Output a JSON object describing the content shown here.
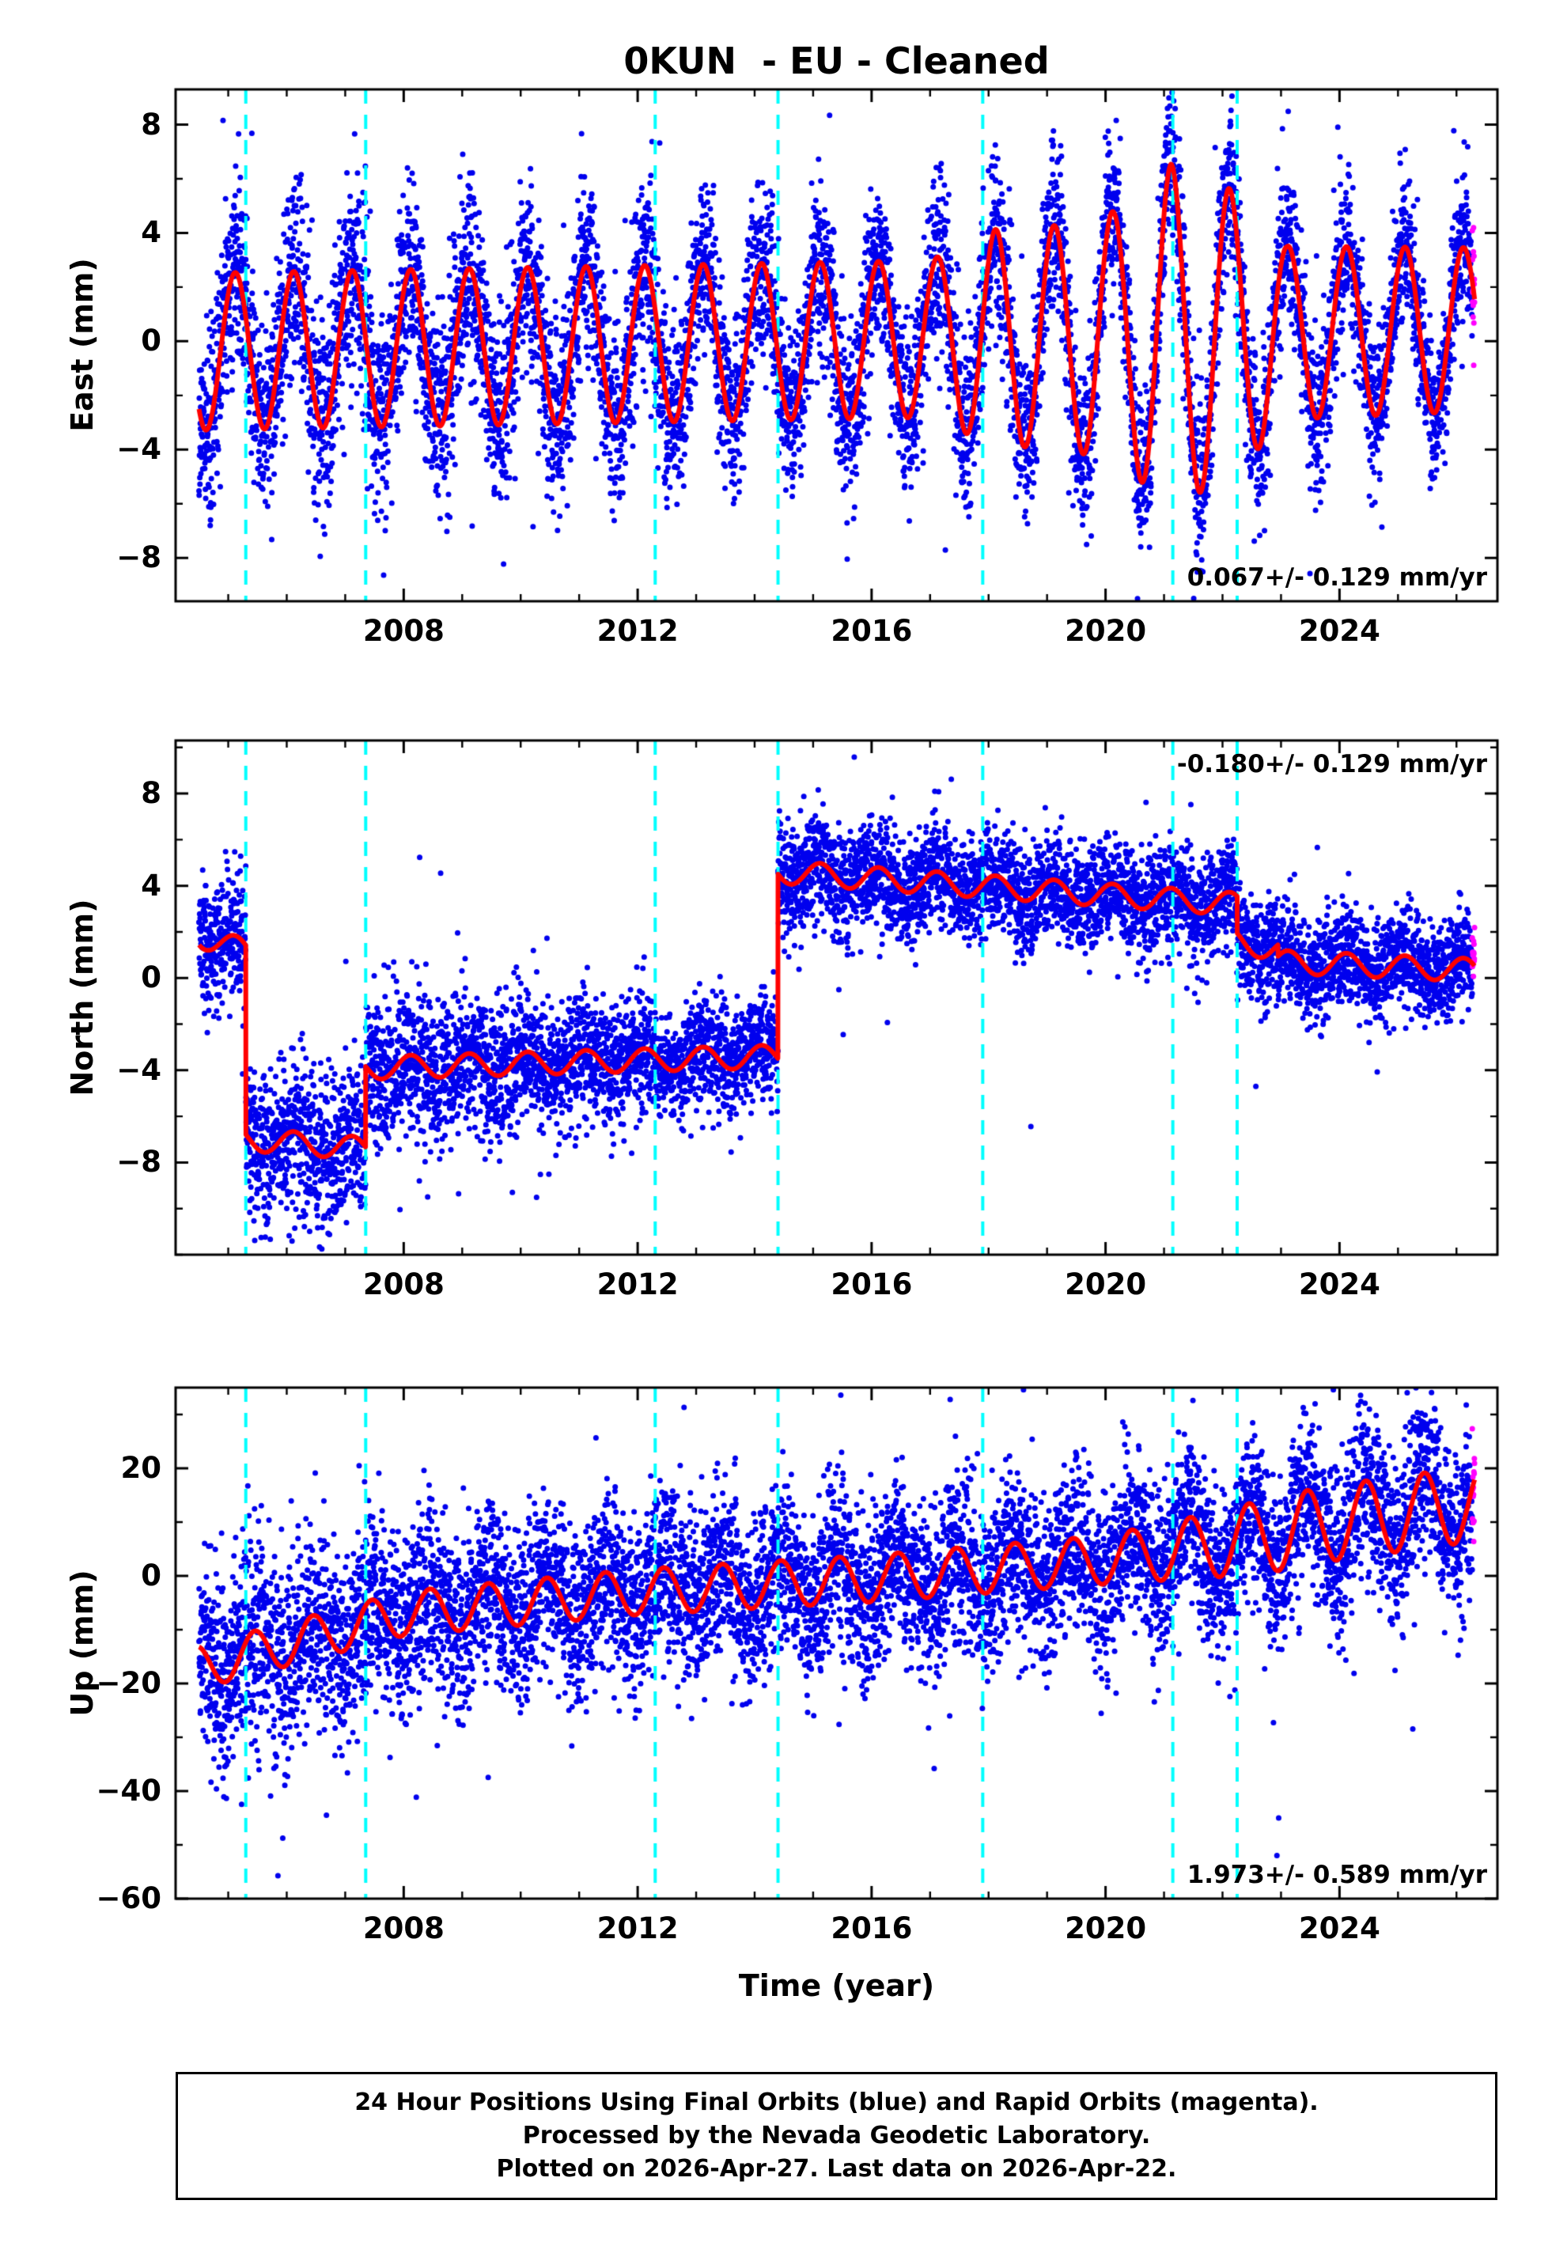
{
  "page": {
    "title": "0KUN  - EU - Cleaned"
  },
  "axes": {
    "x_label": "Time (year)",
    "x_lim": [
      2004.1,
      2026.7
    ],
    "x_ticks": [
      2008,
      2012,
      2016,
      2020,
      2024
    ],
    "x_minor_step": 1
  },
  "event_lines_x": [
    2005.3,
    2007.35,
    2012.3,
    2014.4,
    2017.9,
    2021.15,
    2022.25
  ],
  "colors": {
    "final_orbit": "#0000ee",
    "rapid_orbit": "#ff00ff",
    "model_line": "#ff0000",
    "event_line": "#00ffff",
    "frame": "#000000",
    "background": "#ffffff"
  },
  "chart_data": [
    {
      "type": "scatter",
      "id": "east",
      "ylabel": "East (mm)",
      "y_lim": [
        -9.6,
        9.3
      ],
      "y_ticks": [
        -8,
        -4,
        0,
        4,
        8
      ],
      "y_minor_step": 2,
      "rate_label": "0.067+/- 0.129 mm/yr",
      "rate_label_corner": "bottom-right",
      "x_start": 2004.5,
      "x_end_final": 2026.27,
      "x_end_rapid": 2026.31,
      "trend_points": [
        [
          2004.1,
          -0.4
        ],
        [
          2026.7,
          0.45
        ]
      ],
      "seasonal_phase_yr": 0.12,
      "seasonal_amp_points": [
        [
          2004.5,
          2.9
        ],
        [
          2017.0,
          2.9
        ],
        [
          2018.1,
          4.0
        ],
        [
          2019.1,
          4.1
        ],
        [
          2020.15,
          4.6
        ],
        [
          2021.12,
          6.3
        ],
        [
          2022.1,
          5.4
        ],
        [
          2023.1,
          3.2
        ],
        [
          2026.7,
          3.0
        ]
      ],
      "noise_std_points": [
        [
          2004.5,
          1.8
        ],
        [
          2008,
          1.9
        ],
        [
          2012,
          1.7
        ],
        [
          2020,
          1.5
        ],
        [
          2026.7,
          1.4
        ]
      ],
      "outliers": []
    },
    {
      "type": "scatter",
      "id": "north",
      "ylabel": "North (mm)",
      "y_lim": [
        -12.0,
        10.3
      ],
      "y_ticks": [
        -8,
        -4,
        0,
        4,
        8
      ],
      "y_minor_step": 2,
      "rate_label": "-0.180+/- 0.129 mm/yr",
      "rate_label_corner": "top-right",
      "x_start": 2004.5,
      "x_end_final": 2026.27,
      "x_end_rapid": 2026.31,
      "segments": [
        [
          2004.5,
          2005.3,
          1.8,
          1.2
        ],
        [
          2005.3,
          2007.35,
          -7.0,
          -7.4
        ],
        [
          2007.35,
          2014.4,
          -3.9,
          -3.4
        ],
        [
          2014.4,
          2022.25,
          4.6,
          3.2
        ],
        [
          2022.25,
          2022.95,
          1.6,
          1.2
        ],
        [
          2022.95,
          2026.7,
          0.7,
          0.3
        ]
      ],
      "seasonal_phase_yr": 0.12,
      "seasonal_amp_points": [
        [
          2004.5,
          0.5
        ],
        [
          2026.7,
          0.5
        ]
      ],
      "noise_std_points": [
        [
          2004.5,
          1.3
        ],
        [
          2006.5,
          1.7
        ],
        [
          2009,
          1.5
        ],
        [
          2012,
          1.2
        ],
        [
          2026.7,
          1.0
        ]
      ],
      "outliers": []
    },
    {
      "type": "scatter",
      "id": "up",
      "ylabel": "Up (mm)",
      "y_lim": [
        -60,
        35
      ],
      "y_ticks": [
        -60,
        -40,
        -20,
        0,
        20
      ],
      "y_minor_step": 10,
      "rate_label": "1.973+/- 0.589 mm/yr",
      "rate_label_corner": "bottom-right",
      "x_start": 2004.5,
      "x_end_final": 2026.27,
      "x_end_rapid": 2026.31,
      "trend_points": [
        [
          2004.5,
          -17
        ],
        [
          2008,
          -7
        ],
        [
          2012,
          -3
        ],
        [
          2016,
          -0.5
        ],
        [
          2020,
          3
        ],
        [
          2022,
          6
        ],
        [
          2024,
          10
        ],
        [
          2026.7,
          14
        ]
      ],
      "seasonal_phase_yr": 0.45,
      "seasonal_amp_points": [
        [
          2004.5,
          4.0
        ],
        [
          2020,
          4.5
        ],
        [
          2023,
          7.0
        ],
        [
          2026.7,
          7.0
        ]
      ],
      "noise_std_points": [
        [
          2004.5,
          9.0
        ],
        [
          2010,
          8.0
        ],
        [
          2026.7,
          7.5
        ]
      ],
      "outliers": [
        [
          2022.93,
          -52
        ],
        [
          2022.96,
          -45
        ]
      ]
    }
  ],
  "caption": {
    "line1": "24 Hour Positions Using Final Orbits (blue) and Rapid Orbits (magenta).",
    "line2": "Processed by the Nevada Geodetic Laboratory.",
    "line3": "Plotted on 2026-Apr-27. Last data on 2026-Apr-22."
  }
}
